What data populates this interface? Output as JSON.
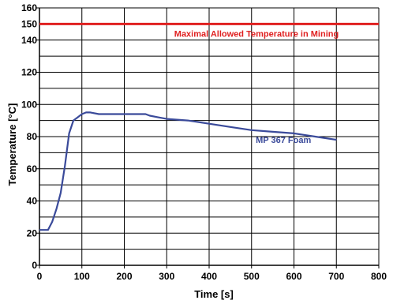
{
  "chart_data": {
    "type": "line",
    "xlabel": "Time [s]",
    "ylabel": "Temperature [°C]",
    "xlim": [
      0,
      800
    ],
    "ylim": [
      0,
      160
    ],
    "x_ticks": [
      "0",
      "100",
      "200",
      "300",
      "400",
      "500",
      "600",
      "700",
      "800"
    ],
    "y_ticks": [
      "0",
      "20",
      "40",
      "60",
      "80",
      "100",
      "120",
      "140",
      "160"
    ],
    "x_tick_values": [
      0,
      100,
      200,
      300,
      400,
      500,
      600,
      700,
      800
    ],
    "y_tick_values": [
      0,
      20,
      40,
      60,
      80,
      100,
      120,
      140,
      160
    ],
    "grid": true,
    "series": [
      {
        "name": "MP 367 Foam",
        "color": "#3a4a9a",
        "x": [
          0,
          20,
          30,
          40,
          50,
          60,
          70,
          80,
          90,
          100,
          110,
          120,
          140,
          160,
          200,
          220,
          240,
          250,
          260,
          280,
          300,
          350,
          400,
          450,
          500,
          550,
          600,
          650,
          700
        ],
        "y": [
          22,
          22,
          27,
          35,
          45,
          62,
          82,
          90,
          92,
          94,
          95,
          95,
          94,
          94,
          94,
          94,
          94,
          94,
          93,
          92,
          91,
          90,
          88,
          86,
          84,
          83,
          82,
          80,
          78
        ]
      }
    ],
    "reference_lines": [
      {
        "y": 150,
        "label": "Maximal Allowed Temperature in Mining",
        "value_label": "150",
        "color": "#e02020"
      }
    ],
    "annotations": [
      {
        "text": "MP 367 Foam",
        "x": 510,
        "y": 78,
        "color": "#3a4a9a"
      }
    ]
  }
}
